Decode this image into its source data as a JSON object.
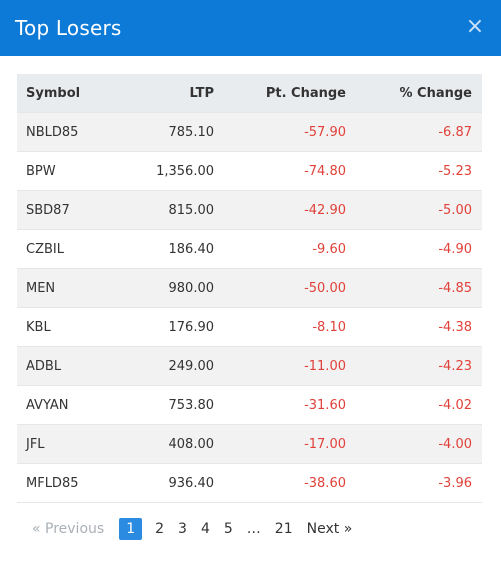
{
  "modal": {
    "title": "Top Losers",
    "close_icon": "×",
    "accent_color": "#0c7ad6",
    "negative_color": "#e0413a"
  },
  "table": {
    "headers": [
      "Symbol",
      "LTP",
      "Pt. Change",
      "% Change"
    ],
    "rows": [
      {
        "symbol": "NBLD85",
        "ltp": "785.10",
        "pt": "-57.90",
        "pct": "-6.87"
      },
      {
        "symbol": "BPW",
        "ltp": "1,356.00",
        "pt": "-74.80",
        "pct": "-5.23"
      },
      {
        "symbol": "SBD87",
        "ltp": "815.00",
        "pt": "-42.90",
        "pct": "-5.00"
      },
      {
        "symbol": "CZBIL",
        "ltp": "186.40",
        "pt": "-9.60",
        "pct": "-4.90"
      },
      {
        "symbol": "MEN",
        "ltp": "980.00",
        "pt": "-50.00",
        "pct": "-4.85"
      },
      {
        "symbol": "KBL",
        "ltp": "176.90",
        "pt": "-8.10",
        "pct": "-4.38"
      },
      {
        "symbol": "ADBL",
        "ltp": "249.00",
        "pt": "-11.00",
        "pct": "-4.23"
      },
      {
        "symbol": "AVYAN",
        "ltp": "753.80",
        "pt": "-31.60",
        "pct": "-4.02"
      },
      {
        "symbol": "JFL",
        "ltp": "408.00",
        "pt": "-17.00",
        "pct": "-4.00"
      },
      {
        "symbol": "MFLD85",
        "ltp": "936.40",
        "pt": "-38.60",
        "pct": "-3.96"
      }
    ]
  },
  "pagination": {
    "previous": "« Previous",
    "pages": [
      "1",
      "2",
      "3",
      "4",
      "5",
      "…",
      "21"
    ],
    "active": "1",
    "next": "Next »"
  }
}
